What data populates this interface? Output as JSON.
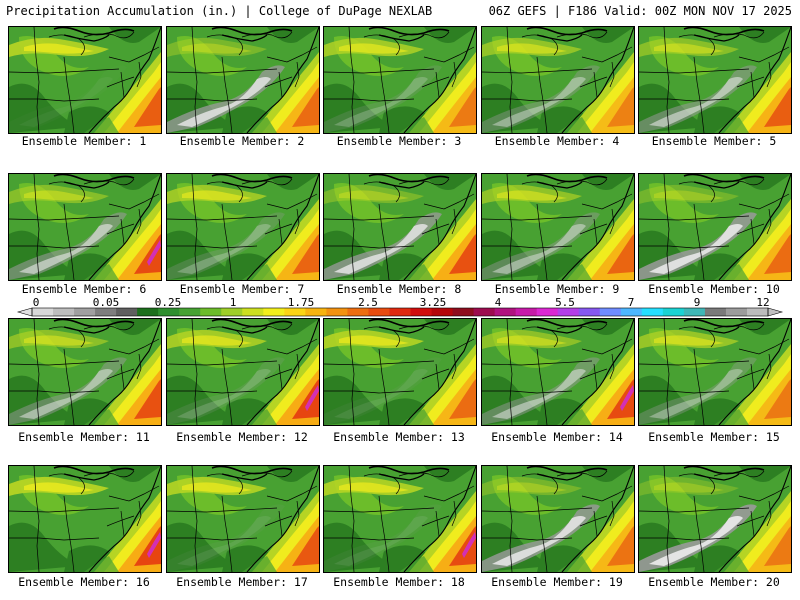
{
  "header": {
    "title": "Precipitation Accumulation (in.) | College of DuPage NEXLAB",
    "run_info": "06Z GEFS | F186 Valid: 00Z MON NOV 17 2025"
  },
  "caption_prefix": "Ensemble Member: ",
  "members": [
    {
      "id": "1",
      "label": "Ensemble Member: 1",
      "dry": 0.05,
      "wet": 0.7
    },
    {
      "id": "2",
      "label": "Ensemble Member: 2",
      "dry": 0.85,
      "wet": 0.6
    },
    {
      "id": "3",
      "label": "Ensemble Member: 3",
      "dry": 0.25,
      "wet": 0.5
    },
    {
      "id": "4",
      "label": "Ensemble Member: 4",
      "dry": 0.45,
      "wet": 0.45
    },
    {
      "id": "5",
      "label": "Ensemble Member: 5",
      "dry": 0.6,
      "wet": 0.7
    },
    {
      "id": "6",
      "label": "Ensemble Member: 6",
      "dry": 0.65,
      "wet": 0.85
    },
    {
      "id": "7",
      "label": "Ensemble Member: 7",
      "dry": 0.3,
      "wet": 0.65
    },
    {
      "id": "8",
      "label": "Ensemble Member: 8",
      "dry": 0.85,
      "wet": 0.8
    },
    {
      "id": "9",
      "label": "Ensemble Member: 9",
      "dry": 0.5,
      "wet": 0.65
    },
    {
      "id": "10",
      "label": "Ensemble Member: 10",
      "dry": 0.95,
      "wet": 0.6
    },
    {
      "id": "11",
      "label": "Ensemble Member: 11",
      "dry": 0.55,
      "wet": 0.8
    },
    {
      "id": "12",
      "label": "Ensemble Member: 12",
      "dry": 0.2,
      "wet": 0.9
    },
    {
      "id": "13",
      "label": "Ensemble Member: 13",
      "dry": 0.1,
      "wet": 0.6
    },
    {
      "id": "14",
      "label": "Ensemble Member: 14",
      "dry": 0.55,
      "wet": 0.85
    },
    {
      "id": "15",
      "label": "Ensemble Member: 15",
      "dry": 0.4,
      "wet": 0.5
    },
    {
      "id": "16",
      "label": "Ensemble Member: 16",
      "dry": 0.0,
      "wet": 0.9
    },
    {
      "id": "17",
      "label": "Ensemble Member: 17",
      "dry": 0.1,
      "wet": 0.75
    },
    {
      "id": "18",
      "label": "Ensemble Member: 18",
      "dry": 0.1,
      "wet": 0.85
    },
    {
      "id": "19",
      "label": "Ensemble Member: 19",
      "dry": 0.9,
      "wet": 0.55
    },
    {
      "id": "20",
      "label": "Ensemble Member: 20",
      "dry": 1.0,
      "wet": 0.5
    }
  ],
  "legend": {
    "tick_labels": [
      "0",
      "0.05",
      "0.25",
      "1",
      "1.75",
      "2.5",
      "3.25",
      "4",
      "5.5",
      "7",
      "9",
      "12"
    ],
    "colors": [
      "#d8d8d8",
      "#bdbdbd",
      "#a0a0a0",
      "#7e7e7e",
      "#5f5f5f",
      "#1d6f1d",
      "#2f8f2f",
      "#46a232",
      "#6cbc2a",
      "#9fcf28",
      "#cde020",
      "#f2ef1c",
      "#fbd515",
      "#f8b410",
      "#f39210",
      "#ee6e10",
      "#e84c10",
      "#e02a10",
      "#d00d0d",
      "#b4060a",
      "#8e0d1e",
      "#9d0b4f",
      "#b0127f",
      "#c71aa9",
      "#db28d2",
      "#b33fe8",
      "#8658f0",
      "#6f8cff",
      "#4db7ff",
      "#25e0ff",
      "#1bd3d3",
      "#3fb7b7",
      "#7a7a7a",
      "#9c9c9c",
      "#bcbcbc"
    ]
  },
  "palette": {
    "dark_green": "#2d7f22",
    "green": "#48a132",
    "light_green": "#6cbd2a",
    "yellow_green": "#b6d424",
    "yellow": "#f0ec1e",
    "orange": "#f7a914",
    "red": "#e43a10",
    "magenta": "#d02cc8",
    "light_gray": "#e4e4e4",
    "gray": "#9a9a9a",
    "map_lines": "#000000"
  }
}
